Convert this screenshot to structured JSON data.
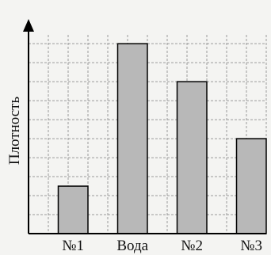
{
  "chart_data": {
    "type": "bar",
    "categories": [
      "№1",
      "Вода",
      "№2",
      "№3"
    ],
    "values": [
      2.5,
      10,
      8,
      5
    ],
    "ylabel": "Плотность",
    "xlabel": "",
    "title": "",
    "ylim": [
      0,
      10.8
    ],
    "y_ticks_labeled": false,
    "grid": true,
    "colors": {
      "bar": "#b8b8b8",
      "outline": "#000000",
      "grid": "#9a9a9a"
    }
  }
}
